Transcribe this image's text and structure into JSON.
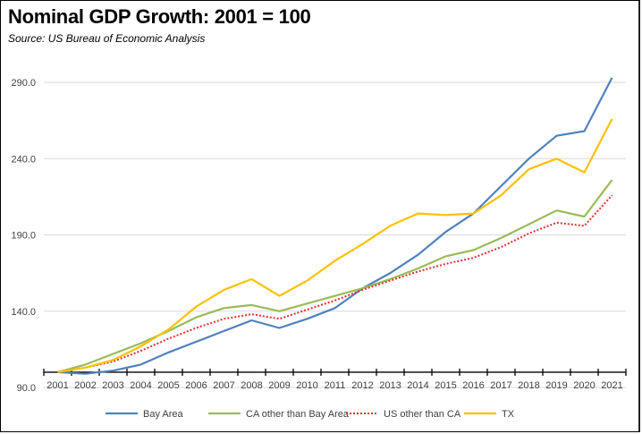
{
  "chart_data": {
    "type": "line",
    "title": "Nominal GDP Growth:  2001 = 100",
    "subtitle": "Source:  US Bureau of Economic Analysis",
    "xlabel": "",
    "ylabel": "",
    "ylim": [
      90,
      290
    ],
    "y_ticks": [
      90,
      140,
      190,
      240,
      290
    ],
    "y_tick_labels": [
      "90.0",
      "140.0",
      "190.0",
      "240.0",
      "290.0"
    ],
    "x_axis_crosses_at": 100,
    "grid": "horizontal",
    "legend_position": "bottom",
    "categories": [
      "2001",
      "2002",
      "2003",
      "2004",
      "2005",
      "2006",
      "2007",
      "2008",
      "2009",
      "2010",
      "2011",
      "2012",
      "2013",
      "2014",
      "2015",
      "2016",
      "2017",
      "2018",
      "2019",
      "2020",
      "2021"
    ],
    "series": [
      {
        "name": "Bay Area",
        "color": "#4F81BD",
        "style": "solid",
        "values": [
          100,
          99,
          101,
          105,
          113,
          120,
          127,
          134,
          129,
          135,
          142,
          155,
          165,
          177,
          192,
          204,
          222,
          240,
          255,
          258,
          293
        ]
      },
      {
        "name": "CA other than Bay Area",
        "color": "#9BBB59",
        "style": "solid",
        "values": [
          100,
          105,
          112,
          119,
          127,
          136,
          142,
          144,
          140,
          145,
          150,
          155,
          161,
          168,
          176,
          180,
          188,
          197,
          206,
          202,
          226
        ]
      },
      {
        "name": "US other than CA",
        "color": "#E03030",
        "style": "dotted",
        "values": [
          100,
          103,
          107,
          114,
          122,
          129,
          135,
          138,
          135,
          141,
          147,
          154,
          160,
          166,
          171,
          175,
          182,
          191,
          198,
          196,
          216
        ]
      },
      {
        "name": "TX",
        "color": "#FFC000",
        "style": "solid",
        "values": [
          100,
          103,
          108,
          117,
          128,
          143,
          154,
          161,
          150,
          160,
          173,
          184,
          196,
          204,
          203,
          204,
          216,
          233,
          240,
          231,
          266
        ]
      }
    ]
  }
}
